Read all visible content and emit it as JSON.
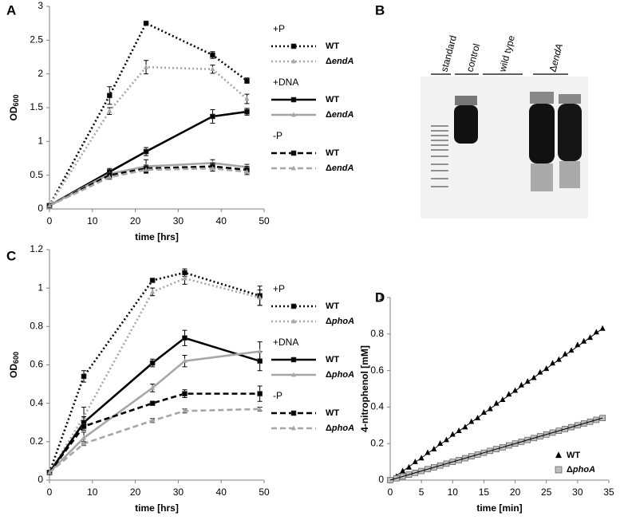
{
  "chart_data": [
    {
      "type": "line",
      "panel": "A",
      "x_label": "time [hrs]",
      "y_label": "OD600",
      "x": [
        0,
        14,
        22.5,
        38,
        46
      ],
      "xlim": [
        0,
        50
      ],
      "xticks": [
        0,
        10,
        20,
        30,
        40,
        50
      ],
      "ylim": [
        0,
        3
      ],
      "yticks": [
        0,
        0.5,
        1,
        1.5,
        2,
        2.5,
        3
      ],
      "legend": "right",
      "series_groups": [
        {
          "name": "+P",
          "series": [
            {
              "name": "WT",
              "color": "#000000",
              "dash": "dotted",
              "marker": "square",
              "values": [
                0.05,
                1.68,
                2.75,
                2.28,
                1.9
              ],
              "errors": [
                0,
                0.13,
                0.03,
                0.05,
                0.04
              ]
            },
            {
              "name": "ΔendA",
              "color": "#a6a6a6",
              "dash": "dotted",
              "marker": "triangle",
              "values": [
                0.05,
                1.45,
                2.1,
                2.07,
                1.63
              ],
              "errors": [
                0,
                0.05,
                0.1,
                0.06,
                0.07
              ]
            }
          ]
        },
        {
          "name": "+DNA",
          "series": [
            {
              "name": "WT",
              "color": "#000000",
              "dash": "solid",
              "marker": "square",
              "values": [
                0.05,
                0.55,
                0.85,
                1.37,
                1.44
              ],
              "errors": [
                0,
                0.05,
                0.06,
                0.1,
                0.05
              ]
            },
            {
              "name": "ΔendA",
              "color": "#a6a6a6",
              "dash": "solid",
              "marker": "triangle",
              "values": [
                0.05,
                0.52,
                0.63,
                0.68,
                0.62
              ],
              "errors": [
                0,
                0.04,
                0.1,
                0.05,
                0.04
              ]
            }
          ]
        },
        {
          "name": "-P",
          "series": [
            {
              "name": "WT",
              "color": "#000000",
              "dash": "dashed",
              "marker": "square",
              "values": [
                0.05,
                0.5,
                0.6,
                0.63,
                0.58
              ],
              "errors": [
                0,
                0.04,
                0.05,
                0.05,
                0.05
              ]
            },
            {
              "name": "ΔendA",
              "color": "#a6a6a6",
              "dash": "dashed",
              "marker": "triangle",
              "values": [
                0.05,
                0.47,
                0.58,
                0.6,
                0.55
              ],
              "errors": [
                0,
                0.03,
                0.04,
                0.04,
                0.04
              ]
            }
          ]
        }
      ]
    },
    {
      "type": "line",
      "panel": "C",
      "x_label": "time [hrs]",
      "y_label": "OD600",
      "x": [
        0,
        8,
        24,
        31.5,
        49
      ],
      "xlim": [
        0,
        50
      ],
      "xticks": [
        0,
        10,
        20,
        30,
        40,
        50
      ],
      "ylim": [
        0,
        1.2
      ],
      "yticks": [
        0,
        0.2,
        0.4,
        0.6,
        0.8,
        1,
        1.2
      ],
      "legend": "right",
      "series_groups": [
        {
          "name": "+P",
          "series": [
            {
              "name": "WT",
              "color": "#000000",
              "dash": "dotted",
              "marker": "square",
              "values": [
                0.04,
                0.54,
                1.04,
                1.08,
                0.96
              ],
              "errors": [
                0,
                0.03,
                0.01,
                0.02,
                0.05
              ]
            },
            {
              "name": "ΔphoA",
              "color": "#a6a6a6",
              "dash": "dotted",
              "marker": "triangle",
              "values": [
                0.04,
                0.33,
                0.98,
                1.05,
                0.95
              ],
              "errors": [
                0,
                0.05,
                0.02,
                0.03,
                0.04
              ]
            }
          ]
        },
        {
          "name": "+DNA",
          "series": [
            {
              "name": "WT",
              "color": "#000000",
              "dash": "solid",
              "marker": "square",
              "values": [
                0.04,
                0.3,
                0.61,
                0.74,
                0.62
              ],
              "errors": [
                0,
                0.03,
                0.02,
                0.04,
                0.05
              ]
            },
            {
              "name": "ΔphoA",
              "color": "#a6a6a6",
              "dash": "solid",
              "marker": "triangle",
              "values": [
                0.04,
                0.22,
                0.48,
                0.62,
                0.67
              ],
              "errors": [
                0,
                0.03,
                0.02,
                0.03,
                0.05
              ]
            }
          ]
        },
        {
          "name": "-P",
          "series": [
            {
              "name": "WT",
              "color": "#000000",
              "dash": "dashed",
              "marker": "square",
              "values": [
                0.04,
                0.28,
                0.4,
                0.45,
                0.45
              ],
              "errors": [
                0,
                0.02,
                0.01,
                0.02,
                0.04
              ]
            },
            {
              "name": "ΔphoA",
              "color": "#a6a6a6",
              "dash": "dashed",
              "marker": "triangle",
              "values": [
                0.04,
                0.19,
                0.31,
                0.36,
                0.37
              ],
              "errors": [
                0,
                0.01,
                0.01,
                0.01,
                0.01
              ]
            }
          ]
        }
      ]
    },
    {
      "type": "scatter",
      "panel": "D",
      "x_label": "time [min]",
      "y_label": "4-nitrophenol [mM]",
      "x": [
        0,
        1,
        2,
        3,
        4,
        5,
        6,
        7,
        8,
        9,
        10,
        11,
        12,
        13,
        14,
        15,
        16,
        17,
        18,
        19,
        20,
        21,
        22,
        23,
        24,
        25,
        26,
        27,
        28,
        29,
        30,
        31,
        32,
        33,
        34
      ],
      "xlim": [
        0,
        35
      ],
      "xticks": [
        0,
        5,
        10,
        15,
        20,
        25,
        30,
        35
      ],
      "ylim": [
        0,
        1
      ],
      "yticks": [
        0,
        0.2,
        0.4,
        0.6,
        0.8,
        1
      ],
      "legend": "lower right",
      "series": [
        {
          "name": "WT",
          "color": "#000000",
          "marker": "triangle",
          "values": [
            0,
            0.02,
            0.05,
            0.07,
            0.1,
            0.12,
            0.15,
            0.17,
            0.2,
            0.22,
            0.25,
            0.27,
            0.29,
            0.32,
            0.34,
            0.37,
            0.39,
            0.42,
            0.44,
            0.47,
            0.49,
            0.52,
            0.54,
            0.56,
            0.59,
            0.61,
            0.64,
            0.66,
            0.69,
            0.71,
            0.74,
            0.76,
            0.78,
            0.81,
            0.83
          ]
        },
        {
          "name": "ΔphoA",
          "color": "#bfbfbf",
          "marker": "square",
          "values": [
            0,
            0.01,
            0.02,
            0.03,
            0.04,
            0.05,
            0.06,
            0.07,
            0.08,
            0.09,
            0.1,
            0.11,
            0.12,
            0.13,
            0.14,
            0.15,
            0.16,
            0.17,
            0.18,
            0.19,
            0.2,
            0.21,
            0.22,
            0.23,
            0.24,
            0.25,
            0.26,
            0.27,
            0.28,
            0.29,
            0.3,
            0.31,
            0.32,
            0.33,
            0.34
          ]
        }
      ]
    }
  ],
  "gel": {
    "panel": "B",
    "lanes": [
      "standard",
      "control",
      "wild type",
      "ΔendA"
    ]
  }
}
